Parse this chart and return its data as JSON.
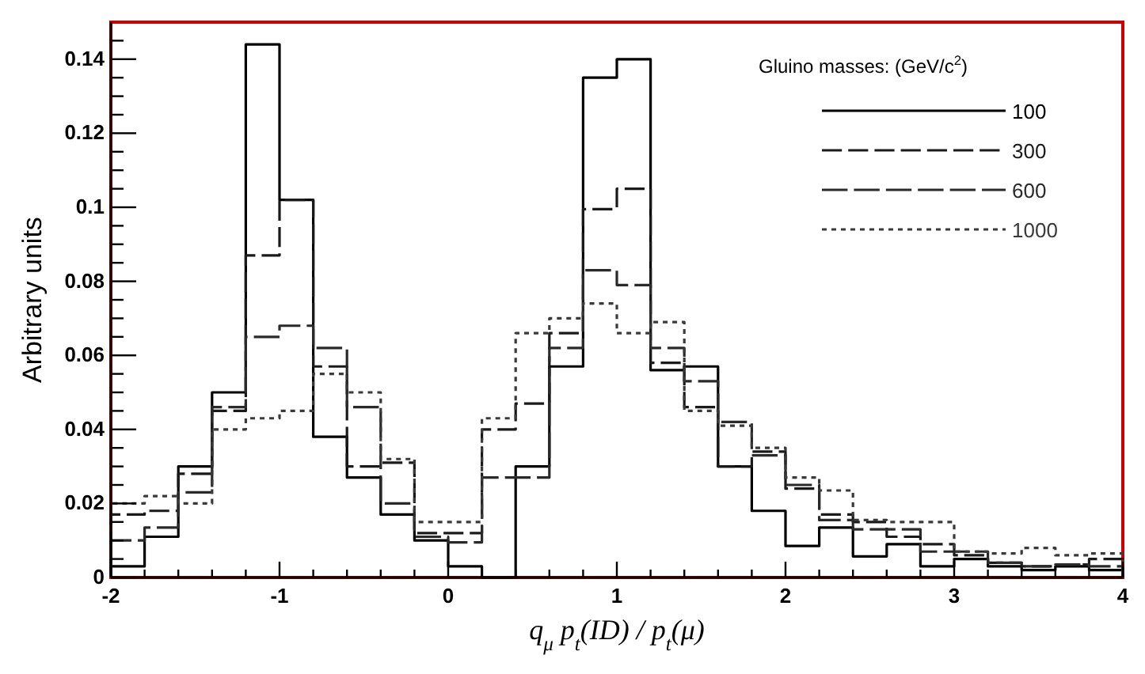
{
  "chart_data": {
    "type": "histogram",
    "ylabel": "Arbitrary units",
    "xlabel": "q$_{μ}$ p$_{t}$(ID) / p$_{t}$(μ)",
    "legend_title": "Gluino masses: (GeV/c$^{2}$)",
    "legend": "top right",
    "bins": [
      -2,
      -1.8,
      -1.6,
      -1.4,
      -1.2,
      -1,
      -0.8,
      -0.6,
      -0.4,
      -0.2,
      0,
      0.2,
      0.4,
      0.6,
      0.8,
      1,
      1.2,
      1.4,
      1.6,
      1.8,
      2,
      2.2,
      2.4,
      2.6,
      2.8,
      3,
      3.2,
      3.4,
      3.6,
      3.8,
      4
    ],
    "xlim": [
      -2,
      4
    ],
    "ylim": [
      0,
      0.15
    ],
    "xticks": [
      -2,
      {
        "value": -1.8,
        "label": null
      },
      {
        "value": -1.6,
        "label": null
      },
      {
        "value": -1.4,
        "label": null
      },
      {
        "value": -1.2,
        "label": null
      },
      -1,
      {
        "value": -0.8,
        "label": null
      },
      {
        "value": -0.6,
        "label": null
      },
      {
        "value": -0.4,
        "label": null
      },
      {
        "value": -0.2,
        "label": null
      },
      0,
      {
        "value": 0.2,
        "label": null
      },
      {
        "value": 0.4,
        "label": null
      },
      {
        "value": 0.6,
        "label": null
      },
      {
        "value": 0.8,
        "label": null
      },
      1,
      {
        "value": 1.2,
        "label": null
      },
      {
        "value": 1.4,
        "label": null
      },
      {
        "value": 1.6,
        "label": null
      },
      {
        "value": 1.8,
        "label": null
      },
      2,
      {
        "value": 2.2,
        "label": null
      },
      {
        "value": 2.4,
        "label": null
      },
      {
        "value": 2.6,
        "label": null
      },
      {
        "value": 2.8,
        "label": null
      },
      3,
      {
        "value": 3.2,
        "label": null
      },
      {
        "value": 3.4,
        "label": null
      },
      {
        "value": 3.6,
        "label": null
      },
      {
        "value": 3.8,
        "label": null
      },
      4
    ],
    "yticks": [
      0,
      {
        "value": 0.005,
        "label": null
      },
      {
        "value": 0.01,
        "label": null
      },
      {
        "value": 0.015,
        "label": null
      },
      0.02,
      {
        "value": 0.025,
        "label": null
      },
      {
        "value": 0.03,
        "label": null
      },
      {
        "value": 0.035,
        "label": null
      },
      0.04,
      {
        "value": 0.045,
        "label": null
      },
      {
        "value": 0.05,
        "label": null
      },
      {
        "value": 0.055,
        "label": null
      },
      0.06,
      {
        "value": 0.065,
        "label": null
      },
      {
        "value": 0.07,
        "label": null
      },
      {
        "value": 0.075,
        "label": null
      },
      0.08,
      {
        "value": 0.085,
        "label": null
      },
      {
        "value": 0.09,
        "label": null
      },
      {
        "value": 0.095,
        "label": null
      },
      0.1,
      {
        "value": 0.105,
        "label": null
      },
      {
        "value": 0.11,
        "label": null
      },
      {
        "value": 0.115,
        "label": null
      },
      0.12,
      {
        "value": 0.125,
        "label": null
      },
      {
        "value": 0.13,
        "label": null
      },
      {
        "value": 0.135,
        "label": null
      },
      0.14,
      {
        "value": 0.145,
        "label": null
      }
    ],
    "grid": false,
    "series": [
      {
        "name": "100",
        "color": "#000000",
        "line_style": "solid",
        "values": [
          0.003,
          0.011,
          0.03,
          0.05,
          0.144,
          0.102,
          0.038,
          0.027,
          0.017,
          0.01,
          0.003,
          0,
          0.03,
          0.057,
          0.135,
          0.14,
          0.056,
          0.057,
          0.03,
          0.018,
          0.0085,
          0.0135,
          0.0057,
          0.009,
          0.003,
          0.005,
          0.003,
          0.002,
          0.003,
          0.002
        ]
      },
      {
        "name": "300",
        "color": "#1a1a1a",
        "line_style": "dashed",
        "values": [
          0.017,
          0.018,
          0.028,
          0.045,
          0.087,
          0.102,
          0.057,
          0.03,
          0.031,
          0.012,
          0.012,
          0.04,
          0.047,
          0.066,
          0.0995,
          0.105,
          0.058,
          0.046,
          0.03,
          0.034,
          0.024,
          0.017,
          0.015,
          0.011,
          0.009,
          0.006,
          0.004,
          0.003,
          0.0035,
          0.005
        ]
      },
      {
        "name": "600",
        "color": "#2a2a2a",
        "line_style": "dashed",
        "values": [
          0.01,
          0.0135,
          0.023,
          0.046,
          0.065,
          0.068,
          0.062,
          0.046,
          0.02,
          0.011,
          0.0095,
          0.027,
          0.027,
          0.062,
          0.083,
          0.079,
          0.062,
          0.053,
          0.042,
          0.033,
          0.025,
          0.0155,
          0.013,
          0.013,
          0.007,
          0.007,
          0.004,
          0.003,
          0.0035,
          0.003
        ]
      },
      {
        "name": "1000",
        "color": "#3a3a3a",
        "line_style": "dotted",
        "values": [
          0.02,
          0.022,
          0.02,
          0.04,
          0.043,
          0.045,
          0.055,
          0.05,
          0.032,
          0.015,
          0.015,
          0.043,
          0.066,
          0.07,
          0.074,
          0.066,
          0.069,
          0.045,
          0.041,
          0.035,
          0.027,
          0.0235,
          0.0155,
          0.015,
          0.015,
          0.007,
          0.0065,
          0.008,
          0.006,
          0.0065
        ]
      }
    ]
  }
}
